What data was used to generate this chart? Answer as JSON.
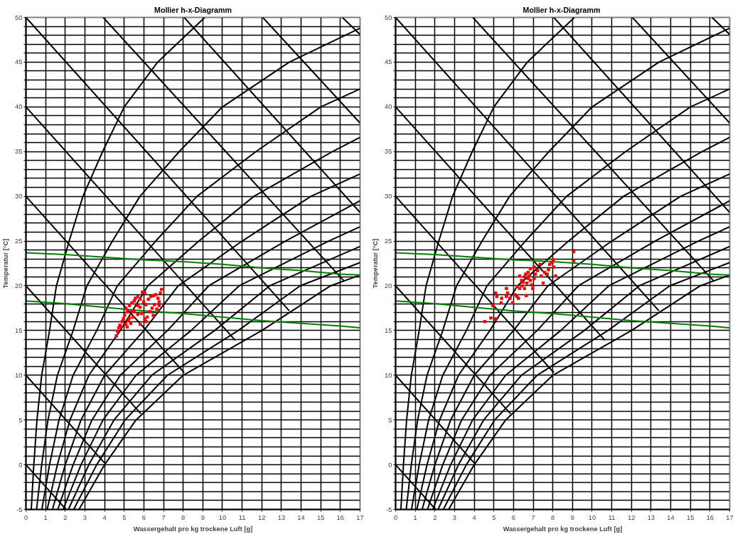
{
  "chart_data": [
    {
      "type": "line",
      "title": "Mollier h-x-Diagramm",
      "xlabel": "Wassergehalt pro kg trockene Luft [g]",
      "ylabel": "Temperatur [°C]",
      "xlim": [
        0,
        17
      ],
      "ylim": [
        -5,
        50
      ],
      "grid": true,
      "marker": "none",
      "line_style": "solid",
      "xticks": [
        0,
        1,
        2,
        3,
        4,
        5,
        6,
        7,
        8,
        9,
        10,
        11,
        12,
        13,
        14,
        15,
        16,
        17
      ],
      "yticks": [
        -5,
        {
          "value": -4,
          "label": null
        },
        {
          "value": -3,
          "label": null
        },
        {
          "value": -2,
          "label": null
        },
        {
          "value": -1,
          "label": null
        },
        0,
        {
          "value": 1,
          "label": null
        },
        {
          "value": 2,
          "label": null
        },
        {
          "value": 3,
          "label": null
        },
        {
          "value": 4,
          "label": null
        },
        5,
        {
          "value": 6,
          "label": null
        },
        {
          "value": 7,
          "label": null
        },
        {
          "value": 8,
          "label": null
        },
        {
          "value": 9,
          "label": null
        },
        10,
        {
          "value": 11,
          "label": null
        },
        {
          "value": 12,
          "label": null
        },
        {
          "value": 13,
          "label": null
        },
        {
          "value": 14,
          "label": null
        },
        15,
        {
          "value": 16,
          "label": null
        },
        {
          "value": 17,
          "label": null
        },
        {
          "value": 18,
          "label": null
        },
        {
          "value": 19,
          "label": null
        },
        20,
        {
          "value": 21,
          "label": null
        },
        {
          "value": 22,
          "label": null
        },
        {
          "value": 23,
          "label": null
        },
        {
          "value": 24,
          "label": null
        },
        25,
        {
          "value": 26,
          "label": null
        },
        {
          "value": 27,
          "label": null
        },
        {
          "value": 28,
          "label": null
        },
        {
          "value": 29,
          "label": null
        },
        30,
        {
          "value": 31,
          "label": null
        },
        {
          "value": 32,
          "label": null
        },
        {
          "value": 33,
          "label": null
        },
        {
          "value": 34,
          "label": null
        },
        35,
        {
          "value": 36,
          "label": null
        },
        {
          "value": 37,
          "label": null
        },
        {
          "value": 38,
          "label": null
        },
        {
          "value": 39,
          "label": null
        },
        40,
        {
          "value": 41,
          "label": null
        },
        {
          "value": 42,
          "label": null
        },
        {
          "value": 43,
          "label": null
        },
        {
          "value": 44,
          "label": null
        },
        45,
        {
          "value": 46,
          "label": null
        },
        {
          "value": 47,
          "label": null
        },
        {
          "value": 48,
          "label": null
        },
        {
          "value": 49,
          "label": null
        },
        50
      ],
      "series": [
        {
          "color": "#000000",
          "x": [
            0.27,
            0.4,
            0.56,
            0.8,
            1.2,
            1.55,
            2.2,
            2.9,
            3.9,
            5.0,
            6.7,
            9.1
          ],
          "values": [
            -5,
            0,
            5,
            10,
            15,
            20,
            25,
            30,
            35,
            40,
            45,
            50
          ]
        },
        {
          "color": "#000000",
          "x": [
            0.54,
            0.8,
            1.12,
            1.6,
            2.4,
            3.1,
            4.4,
            5.8,
            7.8,
            10.0,
            13.4,
            17
          ],
          "values": [
            -5,
            0,
            5,
            10,
            15,
            20,
            25,
            30,
            35,
            40,
            45,
            48.8
          ]
        },
        {
          "color": "#000000",
          "x": [
            0.81,
            1.2,
            1.68,
            2.4,
            3.6,
            4.65,
            6.6,
            8.7,
            11.7,
            15.0,
            17
          ],
          "values": [
            -5,
            0,
            5,
            10,
            15,
            20,
            25,
            30,
            35,
            40,
            42.0
          ]
        },
        {
          "color": "#000000",
          "x": [
            1.08,
            1.6,
            2.24,
            3.2,
            4.8,
            6.2,
            8.8,
            11.6,
            15.6,
            17
          ],
          "values": [
            -5,
            0,
            5,
            10,
            15,
            20,
            25,
            30,
            35,
            36.6
          ]
        },
        {
          "color": "#000000",
          "x": [
            1.35,
            2.0,
            2.8,
            4.0,
            6.0,
            7.75,
            11.0,
            14.5,
            17
          ],
          "values": [
            -5,
            0,
            5,
            10,
            15,
            20,
            25,
            30,
            32.5
          ]
        },
        {
          "color": "#000000",
          "x": [
            1.62,
            2.4,
            3.36,
            4.8,
            7.2,
            9.3,
            13.2,
            17
          ],
          "values": [
            -5,
            0,
            5,
            10,
            15,
            20,
            25,
            29.5
          ]
        },
        {
          "color": "#000000",
          "x": [
            1.89,
            2.8,
            3.92,
            5.6,
            8.4,
            10.85,
            15.4,
            17
          ],
          "values": [
            -5,
            0,
            5,
            10,
            15,
            20,
            25,
            26.6
          ]
        },
        {
          "color": "#000000",
          "x": [
            2.16,
            3.2,
            4.48,
            6.4,
            9.6,
            12.4,
            17
          ],
          "values": [
            -5,
            0,
            5,
            10,
            15,
            20,
            24.4
          ]
        },
        {
          "color": "#000000",
          "x": [
            2.43,
            3.6,
            5.04,
            7.2,
            10.8,
            13.95,
            17
          ],
          "values": [
            -5,
            0,
            5,
            10,
            15,
            20,
            22.6
          ]
        },
        {
          "color": "#000000",
          "x": [
            2.7,
            4.0,
            5.6,
            8.0,
            12.0,
            15.5,
            17
          ],
          "values": [
            -5,
            0,
            5,
            10,
            15,
            20,
            21.2
          ]
        },
        {
          "color": "#000000",
          "x": [
            0,
            2.04
          ],
          "values": [
            0,
            -5
          ]
        },
        {
          "color": "#000000",
          "x": [
            0,
            4.0
          ],
          "values": [
            10,
            0.2
          ]
        },
        {
          "color": "#000000",
          "x": [
            0,
            5.85
          ],
          "values": [
            20,
            5.7
          ]
        },
        {
          "color": "#000000",
          "x": [
            0,
            8.05
          ],
          "values": [
            30,
            10.3
          ]
        },
        {
          "color": "#000000",
          "x": [
            0,
            10.65
          ],
          "values": [
            40,
            13.9
          ]
        },
        {
          "color": "#000000",
          "x": [
            0,
            13.4
          ],
          "values": [
            50,
            17.2
          ]
        },
        {
          "color": "#000000",
          "x": [
            3.93,
            16.2
          ],
          "values": [
            50,
            20.5
          ]
        },
        {
          "color": "#000000",
          "x": [
            8.05,
            17
          ],
          "values": [
            50,
            28.2
          ]
        },
        {
          "color": "#000000",
          "x": [
            12.05,
            17
          ],
          "values": [
            50,
            38.2
          ]
        },
        {
          "color": "#000000",
          "x": [
            16.1,
            17
          ],
          "values": [
            50,
            48.1
          ]
        },
        {
          "color": "#008000",
          "x": [
            0,
            2,
            4,
            6,
            8,
            10,
            12,
            14,
            16,
            17
          ],
          "values": [
            23.7,
            23.5,
            23.2,
            22.9,
            22.7,
            22.4,
            22.0,
            21.7,
            21.3,
            21.2
          ]
        },
        {
          "color": "#008000",
          "x": [
            0,
            2,
            4,
            6,
            8,
            10,
            12,
            14,
            16,
            17
          ],
          "values": [
            18.3,
            18.0,
            17.6,
            17.2,
            16.9,
            16.5,
            16.1,
            15.8,
            15.5,
            15.3
          ]
        },
        {
          "type": "scatter",
          "color": "#ff0000",
          "marker": "square",
          "x": [
            4.6,
            4.66,
            4.72,
            4.78,
            4.84,
            4.9,
            4.96,
            5.08,
            5.15,
            5.21,
            5.27,
            5.33,
            5.02,
            5.15,
            5.08,
            5.27,
            5.39,
            5.51,
            5.57,
            5.69,
            5.81,
            5.93,
            6.05,
            5.99,
            6.11,
            6.23,
            6.36,
            6.48,
            6.6,
            6.72,
            6.78,
            6.9,
            6.84,
            6.54,
            6.42,
            6.3,
            6.17,
            6.05,
            5.87,
            5.69,
            5.51,
            5.45,
            5.81,
            6.11,
            6.48,
            6.66,
            6.78,
            5.81,
            5.69,
            5.39
          ],
          "values": [
            14.4,
            14.9,
            15.3,
            15.6,
            15.4,
            16.0,
            16.3,
            15.7,
            15.4,
            16.1,
            16.4,
            15.8,
            16.7,
            17.1,
            17.5,
            17.8,
            18.1,
            18.3,
            18.6,
            18.8,
            18.5,
            19.3,
            19.2,
            18.2,
            17.9,
            18.5,
            18.8,
            18.9,
            19.0,
            18.6,
            18.2,
            19.6,
            19.2,
            17.9,
            17.5,
            17.1,
            16.5,
            16.3,
            16.9,
            16.8,
            17.1,
            16.5,
            15.7,
            16.0,
            16.7,
            17.4,
            17.8,
            17.6,
            17.8,
            17.2
          ]
        }
      ]
    },
    {
      "type": "line",
      "title": "Mollier  h-x-Diagramm",
      "xlabel": "Wassergehalt pro kg trockene Luft [g]",
      "ylabel": "Temperatur [°C]",
      "xlim": [
        0,
        17
      ],
      "ylim": [
        -5,
        50
      ],
      "grid": true,
      "marker": "none",
      "line_style": "solid",
      "xticks": [
        0,
        1,
        2,
        3,
        4,
        5,
        6,
        7,
        8,
        9,
        10,
        11,
        12,
        13,
        14,
        15,
        16,
        17
      ],
      "yticks": [
        -5,
        {
          "value": -4,
          "label": null
        },
        {
          "value": -3,
          "label": null
        },
        {
          "value": -2,
          "label": null
        },
        {
          "value": -1,
          "label": null
        },
        0,
        {
          "value": 1,
          "label": null
        },
        {
          "value": 2,
          "label": null
        },
        {
          "value": 3,
          "label": null
        },
        {
          "value": 4,
          "label": null
        },
        5,
        {
          "value": 6,
          "label": null
        },
        {
          "value": 7,
          "label": null
        },
        {
          "value": 8,
          "label": null
        },
        {
          "value": 9,
          "label": null
        },
        10,
        {
          "value": 11,
          "label": null
        },
        {
          "value": 12,
          "label": null
        },
        {
          "value": 13,
          "label": null
        },
        {
          "value": 14,
          "label": null
        },
        15,
        {
          "value": 16,
          "label": null
        },
        {
          "value": 17,
          "label": null
        },
        {
          "value": 18,
          "label": null
        },
        {
          "value": 19,
          "label": null
        },
        20,
        {
          "value": 21,
          "label": null
        },
        {
          "value": 22,
          "label": null
        },
        {
          "value": 23,
          "label": null
        },
        {
          "value": 24,
          "label": null
        },
        25,
        {
          "value": 26,
          "label": null
        },
        {
          "value": 27,
          "label": null
        },
        {
          "value": 28,
          "label": null
        },
        {
          "value": 29,
          "label": null
        },
        30,
        {
          "value": 31,
          "label": null
        },
        {
          "value": 32,
          "label": null
        },
        {
          "value": 33,
          "label": null
        },
        {
          "value": 34,
          "label": null
        },
        35,
        {
          "value": 36,
          "label": null
        },
        {
          "value": 37,
          "label": null
        },
        {
          "value": 38,
          "label": null
        },
        {
          "value": 39,
          "label": null
        },
        40,
        {
          "value": 41,
          "label": null
        },
        {
          "value": 42,
          "label": null
        },
        {
          "value": 43,
          "label": null
        },
        {
          "value": 44,
          "label": null
        },
        45,
        {
          "value": 46,
          "label": null
        },
        {
          "value": 47,
          "label": null
        },
        {
          "value": 48,
          "label": null
        },
        {
          "value": 49,
          "label": null
        },
        50
      ],
      "series": [
        {
          "color": "#000000",
          "x": [
            0.27,
            0.4,
            0.56,
            0.8,
            1.2,
            1.55,
            2.2,
            2.9,
            3.9,
            5.0,
            6.7,
            9.1
          ],
          "values": [
            -5,
            0,
            5,
            10,
            15,
            20,
            25,
            30,
            35,
            40,
            45,
            50
          ]
        },
        {
          "color": "#000000",
          "x": [
            0.54,
            0.8,
            1.12,
            1.6,
            2.4,
            3.1,
            4.4,
            5.8,
            7.8,
            10.0,
            13.4,
            17
          ],
          "values": [
            -5,
            0,
            5,
            10,
            15,
            20,
            25,
            30,
            35,
            40,
            45,
            48.8
          ]
        },
        {
          "color": "#000000",
          "x": [
            0.81,
            1.2,
            1.68,
            2.4,
            3.6,
            4.65,
            6.6,
            8.7,
            11.7,
            15.0,
            17
          ],
          "values": [
            -5,
            0,
            5,
            10,
            15,
            20,
            25,
            30,
            35,
            40,
            42.0
          ]
        },
        {
          "color": "#000000",
          "x": [
            1.08,
            1.6,
            2.24,
            3.2,
            4.8,
            6.2,
            8.8,
            11.6,
            15.6,
            17
          ],
          "values": [
            -5,
            0,
            5,
            10,
            15,
            20,
            25,
            30,
            35,
            36.6
          ]
        },
        {
          "color": "#000000",
          "x": [
            1.35,
            2.0,
            2.8,
            4.0,
            6.0,
            7.75,
            11.0,
            14.5,
            17
          ],
          "values": [
            -5,
            0,
            5,
            10,
            15,
            20,
            25,
            30,
            32.5
          ]
        },
        {
          "color": "#000000",
          "x": [
            1.62,
            2.4,
            3.36,
            4.8,
            7.2,
            9.3,
            13.2,
            17
          ],
          "values": [
            -5,
            0,
            5,
            10,
            15,
            20,
            25,
            29.5
          ]
        },
        {
          "color": "#000000",
          "x": [
            1.89,
            2.8,
            3.92,
            5.6,
            8.4,
            10.85,
            15.4,
            17
          ],
          "values": [
            -5,
            0,
            5,
            10,
            15,
            20,
            25,
            26.6
          ]
        },
        {
          "color": "#000000",
          "x": [
            2.16,
            3.2,
            4.48,
            6.4,
            9.6,
            12.4,
            17
          ],
          "values": [
            -5,
            0,
            5,
            10,
            15,
            20,
            24.4
          ]
        },
        {
          "color": "#000000",
          "x": [
            2.43,
            3.6,
            5.04,
            7.2,
            10.8,
            13.95,
            17
          ],
          "values": [
            -5,
            0,
            5,
            10,
            15,
            20,
            22.6
          ]
        },
        {
          "color": "#000000",
          "x": [
            2.7,
            4.0,
            5.6,
            8.0,
            12.0,
            15.5,
            17
          ],
          "values": [
            -5,
            0,
            5,
            10,
            15,
            20,
            21.2
          ]
        },
        {
          "color": "#000000",
          "x": [
            0,
            2.04
          ],
          "values": [
            0,
            -5
          ]
        },
        {
          "color": "#000000",
          "x": [
            0,
            4.0
          ],
          "values": [
            10,
            0.2
          ]
        },
        {
          "color": "#000000",
          "x": [
            0,
            5.85
          ],
          "values": [
            20,
            5.7
          ]
        },
        {
          "color": "#000000",
          "x": [
            0,
            8.05
          ],
          "values": [
            30,
            10.3
          ]
        },
        {
          "color": "#000000",
          "x": [
            0,
            10.65
          ],
          "values": [
            40,
            13.9
          ]
        },
        {
          "color": "#000000",
          "x": [
            0,
            13.4
          ],
          "values": [
            50,
            17.2
          ]
        },
        {
          "color": "#000000",
          "x": [
            3.93,
            16.2
          ],
          "values": [
            50,
            20.5
          ]
        },
        {
          "color": "#000000",
          "x": [
            8.05,
            17
          ],
          "values": [
            50,
            28.2
          ]
        },
        {
          "color": "#000000",
          "x": [
            12.05,
            17
          ],
          "values": [
            50,
            38.2
          ]
        },
        {
          "color": "#000000",
          "x": [
            16.1,
            17
          ],
          "values": [
            50,
            48.1
          ]
        },
        {
          "color": "#008000",
          "x": [
            0,
            2,
            4,
            6,
            8,
            10,
            12,
            14,
            16,
            17
          ],
          "values": [
            23.7,
            23.5,
            23.2,
            22.9,
            22.7,
            22.4,
            22.0,
            21.7,
            21.3,
            21.2
          ]
        },
        {
          "color": "#008000",
          "x": [
            0,
            2,
            4,
            6,
            8,
            10,
            12,
            14,
            16,
            17
          ],
          "values": [
            18.3,
            18.0,
            17.6,
            17.2,
            16.9,
            16.5,
            16.1,
            15.8,
            15.5,
            15.3
          ]
        },
        {
          "type": "scatter",
          "color": "#ff0000",
          "marker": "square",
          "x": [
            4.54,
            4.85,
            5.09,
            4.94,
            5.09,
            5.15,
            5.4,
            5.37,
            5.64,
            5.7,
            5.82,
            5.64,
            5.95,
            6.07,
            6.17,
            6.25,
            6.31,
            6.19,
            6.43,
            6.5,
            6.56,
            6.65,
            6.68,
            6.74,
            6.8,
            6.86,
            6.92,
            7.05,
            7.11,
            6.98,
            6.56,
            6.62,
            6.74,
            6.86,
            7.05,
            7.23,
            7.35,
            7.41,
            7.51,
            7.59,
            7.72,
            7.78,
            7.84,
            7.96,
            8.05,
            8.14,
            8.02,
            9.06,
            9.06,
            6.31,
            6.41
          ],
          "values": [
            16.0,
            16.4,
            16.3,
            17.8,
            19.2,
            18.8,
            18.6,
            18.1,
            19.7,
            19.2,
            18.6,
            18.8,
            18.1,
            19.0,
            18.8,
            18.6,
            19.7,
            19.9,
            20.0,
            20.4,
            19.7,
            18.9,
            20.3,
            20.8,
            21.1,
            20.6,
            20.1,
            20.8,
            21.3,
            19.7,
            21.0,
            21.3,
            21.5,
            21.9,
            22.1,
            21.7,
            22.4,
            21.1,
            20.3,
            21.5,
            21.3,
            21.8,
            22.4,
            22.6,
            22.1,
            21.1,
            22.9,
            22.8,
            23.8,
            21.1,
            20.6
          ]
        }
      ]
    }
  ]
}
